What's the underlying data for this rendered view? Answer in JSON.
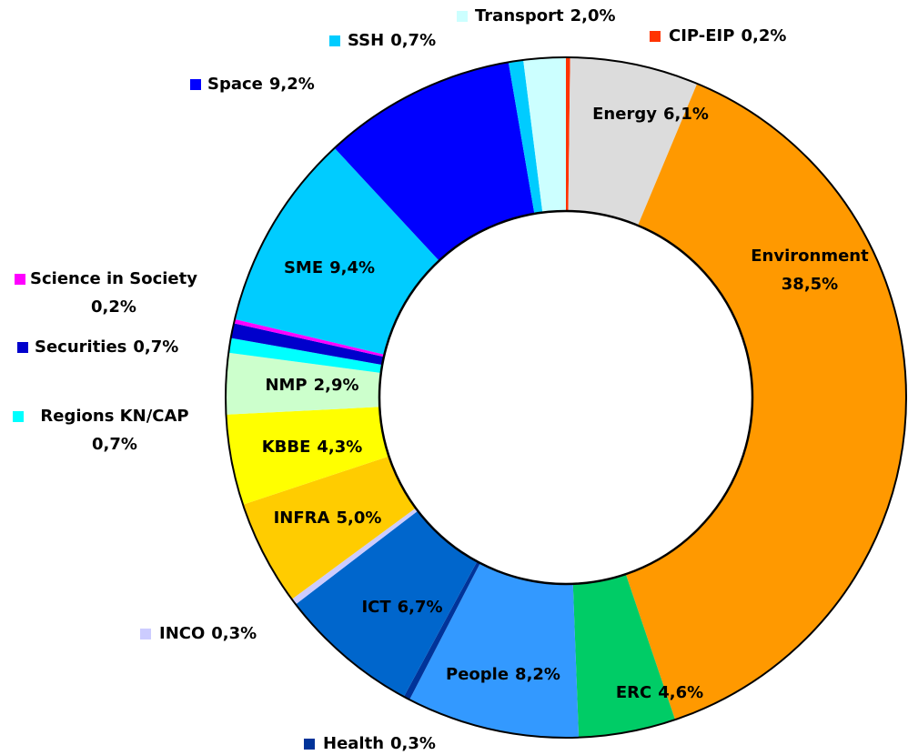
{
  "chart_data": {
    "type": "donut",
    "categories": [
      "CIP-EIP",
      "Energy",
      "Environment",
      "ERC",
      "People",
      "Health",
      "ICT",
      "INCO",
      "INFRA",
      "KBBE",
      "NMP",
      "Regions KN/CAP",
      "Securities",
      "Science in Society",
      "SME",
      "Space",
      "SSH",
      "Transport"
    ],
    "values": [
      0.2,
      6.1,
      38.5,
      4.6,
      8.2,
      0.3,
      6.7,
      0.3,
      5.0,
      4.3,
      2.9,
      0.7,
      0.7,
      0.2,
      9.4,
      9.2,
      0.7,
      2.0
    ],
    "value_labels": [
      "0,2%",
      "6,1%",
      "38,5%",
      "4,6%",
      "8,2%",
      "0,3%",
      "6,7%",
      "0,3%",
      "5,0%",
      "4,3%",
      "2,9%",
      "0,7%",
      "0,7%",
      "0,2%",
      "9,4%",
      "9,2%",
      "0,7%",
      "2,0%"
    ],
    "colors": [
      "#ff3300",
      "#dcdcdc",
      "#ff9900",
      "#00cc66",
      "#3399ff",
      "#003399",
      "#0066cc",
      "#ccccff",
      "#ffcc00",
      "#ffff00",
      "#ccffcc",
      "#00ffff",
      "#0000cc",
      "#ff00ff",
      "#00ccff",
      "#0000ff",
      "#00ccff",
      "#ccffff"
    ]
  }
}
